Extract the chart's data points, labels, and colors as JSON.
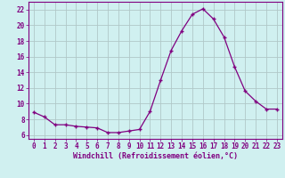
{
  "x": [
    0,
    1,
    2,
    3,
    4,
    5,
    6,
    7,
    8,
    9,
    10,
    11,
    12,
    13,
    14,
    15,
    16,
    17,
    18,
    19,
    20,
    21,
    22,
    23
  ],
  "y": [
    8.9,
    8.3,
    7.3,
    7.3,
    7.1,
    7.0,
    6.9,
    6.3,
    6.3,
    6.5,
    6.7,
    9.0,
    13.0,
    16.8,
    19.3,
    21.4,
    22.1,
    20.8,
    18.5,
    14.7,
    11.6,
    10.3,
    9.3,
    9.3
  ],
  "line_color": "#800080",
  "marker": "+",
  "marker_size": 3,
  "marker_linewidth": 1.0,
  "bg_color": "#d0f0f0",
  "grid_color": "#b0c8c8",
  "xlabel": "Windchill (Refroidissement éolien,°C)",
  "xlabel_color": "#800080",
  "tick_color": "#800080",
  "spine_color": "#800080",
  "ylim": [
    5.5,
    23.0
  ],
  "xlim": [
    -0.5,
    23.5
  ],
  "yticks": [
    6,
    8,
    10,
    12,
    14,
    16,
    18,
    20,
    22
  ],
  "xticks": [
    0,
    1,
    2,
    3,
    4,
    5,
    6,
    7,
    8,
    9,
    10,
    11,
    12,
    13,
    14,
    15,
    16,
    17,
    18,
    19,
    20,
    21,
    22,
    23
  ],
  "tick_fontsize": 5.5,
  "xlabel_fontsize": 6.0
}
